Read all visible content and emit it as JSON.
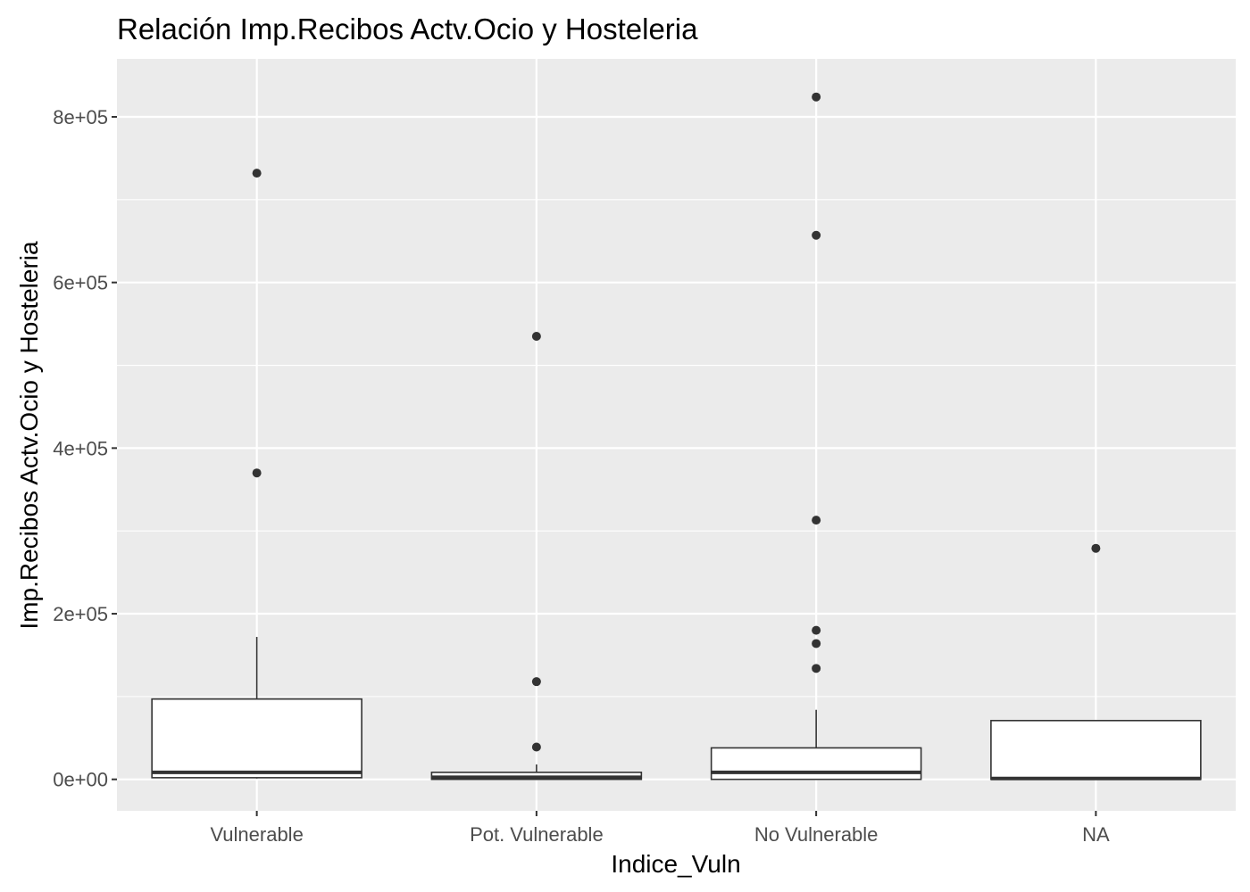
{
  "chart_data": {
    "type": "boxplot",
    "title": "Relación  Imp.Recibos Actv.Ocio y Hosteleria",
    "xlabel": "Indice_Vuln",
    "ylabel": "Imp.Recibos Actv.Ocio y Hosteleria",
    "categories": [
      "Vulnerable",
      "Pot. Vulnerable",
      "No Vulnerable",
      "NA"
    ],
    "ylim": [
      -38000,
      870000
    ],
    "y_ticks": [
      0,
      200000,
      400000,
      600000,
      800000
    ],
    "y_tick_labels": [
      "0e+00",
      "2e+05",
      "4e+05",
      "6e+05",
      "8e+05"
    ],
    "grid": true,
    "boxes": [
      {
        "category": "Vulnerable",
        "whisker_low": 1000,
        "q1": 2000,
        "median": 8500,
        "q3": 97000,
        "whisker_high": 172000,
        "outliers": [
          370000,
          732000
        ]
      },
      {
        "category": "Pot. Vulnerable",
        "whisker_low": 0,
        "q1": 0,
        "median": 2500,
        "q3": 8500,
        "whisker_high": 18000,
        "outliers": [
          39000,
          118000,
          535000
        ]
      },
      {
        "category": "No Vulnerable",
        "whisker_low": 0,
        "q1": 0,
        "median": 8500,
        "q3": 38000,
        "whisker_high": 84000,
        "outliers": [
          134000,
          164000,
          180000,
          313000,
          657000,
          824000
        ]
      },
      {
        "category": "NA",
        "whisker_low": 0,
        "q1": 0,
        "median": 1000,
        "q3": 71000,
        "whisker_high": 71000,
        "outliers": [
          279000
        ]
      }
    ],
    "colors": {
      "panel_background": "#ebebeb",
      "grid_major": "#ffffff",
      "box_fill": "#ffffff",
      "box_line": "#333333",
      "outlier": "#333333",
      "tick_label": "#4d4d4d"
    }
  }
}
